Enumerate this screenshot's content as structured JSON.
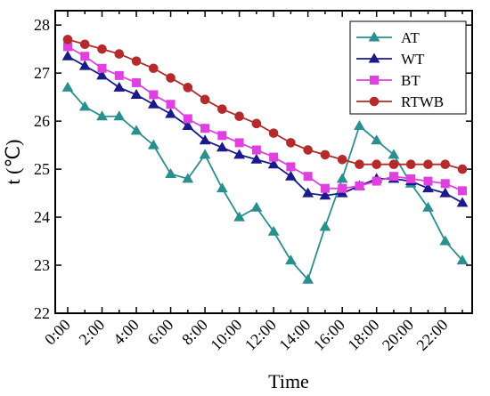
{
  "chart_data": {
    "type": "line",
    "xlabel": "Time",
    "ylabel": "t (℃)",
    "x": [
      "0:00",
      "1:00",
      "2:00",
      "3:00",
      "4:00",
      "5:00",
      "6:00",
      "7:00",
      "8:00",
      "9:00",
      "10:00",
      "11:00",
      "12:00",
      "13:00",
      "14:00",
      "15:00",
      "16:00",
      "17:00",
      "18:00",
      "19:00",
      "20:00",
      "21:00",
      "22:00",
      "23:00"
    ],
    "x_tick_labels": [
      "0:00",
      "2:00",
      "4:00",
      "6:00",
      "8:00",
      "10:00",
      "12:00",
      "14:00",
      "16:00",
      "18:00",
      "20:00",
      "22:00"
    ],
    "ylim": [
      22,
      28.3
    ],
    "y_ticks": [
      22,
      23,
      24,
      25,
      26,
      27,
      28
    ],
    "legend_position": "top-right",
    "grid": false,
    "series": [
      {
        "name": "AT",
        "color": "#2a8f8f",
        "marker": "triangle",
        "values": [
          26.7,
          26.3,
          26.1,
          26.1,
          25.8,
          25.5,
          24.9,
          24.8,
          25.3,
          24.6,
          24.0,
          24.2,
          23.7,
          23.1,
          22.7,
          23.8,
          24.8,
          25.9,
          25.6,
          25.3,
          24.7,
          24.2,
          23.5,
          23.1
        ]
      },
      {
        "name": "WT",
        "color": "#1a1a8c",
        "marker": "triangle",
        "values": [
          27.35,
          27.15,
          26.95,
          26.7,
          26.55,
          26.35,
          26.15,
          25.9,
          25.6,
          25.45,
          25.3,
          25.2,
          25.1,
          24.85,
          24.5,
          24.45,
          24.5,
          24.65,
          24.8,
          24.8,
          24.75,
          24.6,
          24.5,
          24.3
        ]
      },
      {
        "name": "BT",
        "color": "#e040e0",
        "marker": "square",
        "values": [
          27.55,
          27.35,
          27.1,
          26.95,
          26.8,
          26.55,
          26.35,
          26.05,
          25.85,
          25.7,
          25.55,
          25.4,
          25.25,
          25.05,
          24.85,
          24.6,
          24.6,
          24.65,
          24.75,
          24.85,
          24.8,
          24.75,
          24.7,
          24.55
        ]
      },
      {
        "name": "RTWB",
        "color": "#b52a2a",
        "marker": "circle",
        "values": [
          27.7,
          27.6,
          27.5,
          27.4,
          27.25,
          27.1,
          26.9,
          26.7,
          26.45,
          26.25,
          26.1,
          25.95,
          25.75,
          25.55,
          25.4,
          25.3,
          25.2,
          25.1,
          25.1,
          25.1,
          25.1,
          25.1,
          25.1,
          25.0
        ]
      }
    ]
  }
}
